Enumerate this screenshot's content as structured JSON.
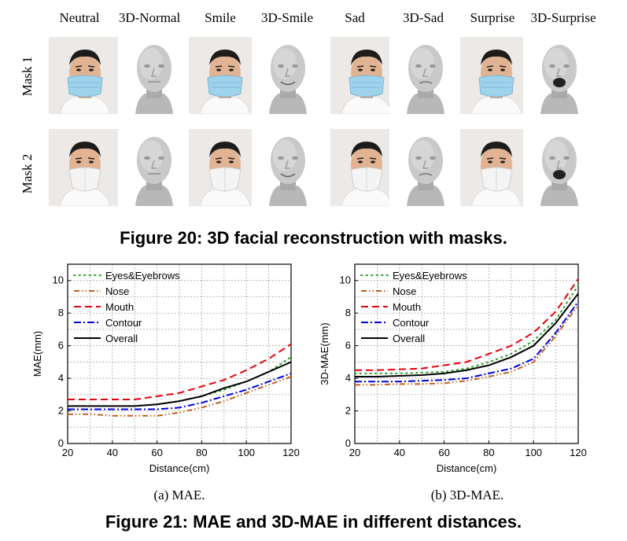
{
  "figure20": {
    "column_headers": [
      "Neutral",
      "3D-Normal",
      "Smile",
      "3D-Smile",
      "Sad",
      "3D-Sad",
      "Surprise",
      "3D-Surprise"
    ],
    "row_labels": [
      "Mask 1",
      "Mask 2"
    ],
    "caption": "Figure 20: 3D facial reconstruction with masks.",
    "tiles": [
      [
        {
          "kind": "photo",
          "mask": "surgical",
          "mouth": "neutral"
        },
        {
          "kind": "render",
          "mouth": "neutral"
        },
        {
          "kind": "photo",
          "mask": "surgical",
          "mouth": "smile"
        },
        {
          "kind": "render",
          "mouth": "smile"
        },
        {
          "kind": "photo",
          "mask": "surgical",
          "mouth": "sad"
        },
        {
          "kind": "render",
          "mouth": "sad"
        },
        {
          "kind": "photo",
          "mask": "surgical",
          "mouth": "surprise"
        },
        {
          "kind": "render",
          "mouth": "surprise"
        }
      ],
      [
        {
          "kind": "photo",
          "mask": "kn95",
          "mouth": "neutral"
        },
        {
          "kind": "render",
          "mouth": "neutral"
        },
        {
          "kind": "photo",
          "mask": "kn95",
          "mouth": "smile"
        },
        {
          "kind": "render",
          "mouth": "smile"
        },
        {
          "kind": "photo",
          "mask": "kn95",
          "mouth": "sad"
        },
        {
          "kind": "render",
          "mouth": "sad"
        },
        {
          "kind": "photo",
          "mask": "kn95",
          "mouth": "surprise"
        },
        {
          "kind": "render",
          "mouth": "surprise"
        }
      ]
    ]
  },
  "figure21": {
    "caption": "Figure 21: MAE and 3D-MAE in different distances.",
    "subcaptions": [
      "(a)  MAE.",
      "(b)  3D-MAE."
    ]
  },
  "chart_data": [
    {
      "type": "line",
      "xlabel": "Distance(cm)",
      "ylabel": "MAE(mm)",
      "xlim": [
        20,
        120
      ],
      "ylim": [
        0,
        11
      ],
      "xticks": [
        20,
        40,
        60,
        80,
        100,
        120
      ],
      "yticks": [
        0,
        2,
        4,
        6,
        8,
        10
      ],
      "grid": true,
      "legend_position": "top-left",
      "x": [
        20,
        30,
        40,
        50,
        60,
        70,
        80,
        90,
        100,
        110,
        120
      ],
      "series": [
        {
          "name": "Eyes&Eyebrows",
          "color": "#2ca02c",
          "dash": "dotted",
          "values": [
            2.3,
            2.3,
            2.3,
            2.3,
            2.4,
            2.6,
            2.9,
            3.3,
            3.8,
            4.4,
            5.3
          ]
        },
        {
          "name": "Nose",
          "color": "#c06020",
          "dash": "dashdotdot",
          "values": [
            1.8,
            1.8,
            1.7,
            1.7,
            1.7,
            1.9,
            2.2,
            2.6,
            3.1,
            3.6,
            4.1
          ]
        },
        {
          "name": "Mouth",
          "color": "#e8000b",
          "dash": "dashed",
          "values": [
            2.7,
            2.7,
            2.7,
            2.7,
            2.9,
            3.1,
            3.5,
            3.9,
            4.5,
            5.2,
            6.1
          ]
        },
        {
          "name": "Contour",
          "color": "#0000dd",
          "dash": "dashdot",
          "values": [
            2.1,
            2.1,
            2.1,
            2.1,
            2.1,
            2.2,
            2.5,
            2.9,
            3.3,
            3.8,
            4.3
          ]
        },
        {
          "name": "Overall",
          "color": "#000000",
          "dash": "solid",
          "values": [
            2.3,
            2.3,
            2.3,
            2.3,
            2.4,
            2.6,
            2.9,
            3.4,
            3.8,
            4.4,
            5.0
          ]
        }
      ]
    },
    {
      "type": "line",
      "xlabel": "Distance(cm)",
      "ylabel": "3D-MAE(mm)",
      "xlim": [
        20,
        120
      ],
      "ylim": [
        0,
        11
      ],
      "xticks": [
        20,
        40,
        60,
        80,
        100,
        120
      ],
      "yticks": [
        0,
        2,
        4,
        6,
        8,
        10
      ],
      "grid": true,
      "legend_position": "top-left",
      "x": [
        20,
        30,
        40,
        50,
        60,
        70,
        80,
        90,
        100,
        110,
        120
      ],
      "series": [
        {
          "name": "Eyes&Eyebrows",
          "color": "#2ca02c",
          "dash": "dotted",
          "values": [
            4.3,
            4.3,
            4.3,
            4.35,
            4.4,
            4.6,
            5.0,
            5.5,
            6.3,
            7.6,
            9.7
          ]
        },
        {
          "name": "Nose",
          "color": "#c06020",
          "dash": "dashdotdot",
          "values": [
            3.6,
            3.6,
            3.65,
            3.65,
            3.7,
            3.85,
            4.1,
            4.4,
            5.0,
            6.6,
            8.5
          ]
        },
        {
          "name": "Mouth",
          "color": "#e8000b",
          "dash": "dashed",
          "values": [
            4.5,
            4.5,
            4.55,
            4.6,
            4.8,
            5.0,
            5.5,
            6.0,
            6.8,
            8.1,
            10.1
          ]
        },
        {
          "name": "Contour",
          "color": "#0000dd",
          "dash": "dashdot",
          "values": [
            3.8,
            3.8,
            3.8,
            3.85,
            3.9,
            4.0,
            4.3,
            4.6,
            5.2,
            6.8,
            8.7
          ]
        },
        {
          "name": "Overall",
          "color": "#000000",
          "dash": "solid",
          "values": [
            4.1,
            4.1,
            4.15,
            4.2,
            4.3,
            4.5,
            4.8,
            5.3,
            6.0,
            7.4,
            9.2
          ]
        }
      ]
    }
  ]
}
